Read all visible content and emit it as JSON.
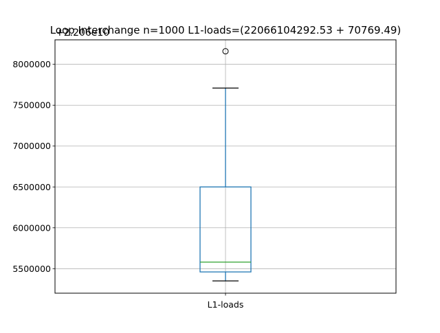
{
  "chart_data": {
    "type": "box",
    "title": "Loop Interchange n=1000  L1-loads=(22066104292.53 + 70769.49)",
    "offset_label": "+2.206e10",
    "categories": [
      "L1-loads"
    ],
    "ylim": [
      5200000,
      8300000
    ],
    "yticks": [
      5500000,
      6000000,
      6500000,
      7000000,
      7500000,
      8000000
    ],
    "ytick_labels": [
      "5500000",
      "6000000",
      "6500000",
      "7000000",
      "7500000",
      "8000000"
    ],
    "grid": true,
    "boxes": [
      {
        "name": "L1-loads",
        "whisker_low": 5350000,
        "q1": 5460000,
        "median": 5580000,
        "q3": 6500000,
        "whisker_high": 7710000,
        "fliers": [
          8160000
        ]
      }
    ],
    "colors": {
      "box": "#1f77b4",
      "median": "#2ca02c",
      "whisker_cap": "#000000",
      "grid": "#b0b0b0"
    }
  }
}
